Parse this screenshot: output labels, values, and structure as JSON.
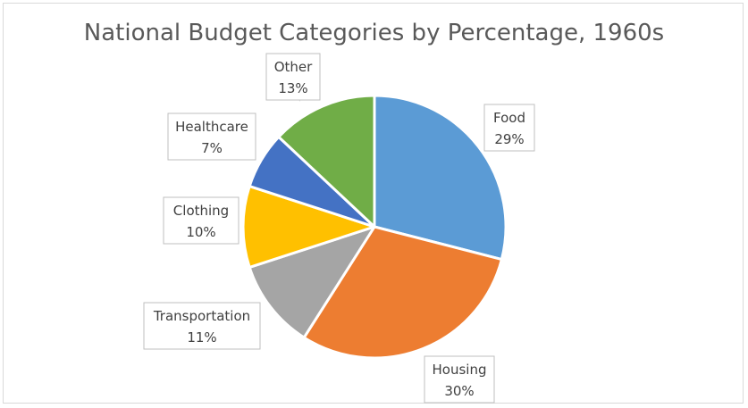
{
  "chart_data": {
    "type": "pie",
    "title": "National Budget Categories by Percentage, 1960s",
    "slices": [
      {
        "label": "Food",
        "value": 29,
        "display": "29%",
        "color": "#5b9bd5"
      },
      {
        "label": "Housing",
        "value": 30,
        "display": "30%",
        "color": "#ed7d31"
      },
      {
        "label": "Transportation",
        "value": 11,
        "display": "11%",
        "color": "#a5a5a5"
      },
      {
        "label": "Clothing",
        "value": 10,
        "display": "10%",
        "color": "#ffc000"
      },
      {
        "label": "Healthcare",
        "value": 7,
        "display": "7%",
        "color": "#4472c4"
      },
      {
        "label": "Other",
        "value": 13,
        "display": "13%",
        "color": "#70ad47"
      }
    ],
    "start_angle": "12 o'clock",
    "direction": "clockwise",
    "legend": "none",
    "data_labels": "callouts"
  }
}
